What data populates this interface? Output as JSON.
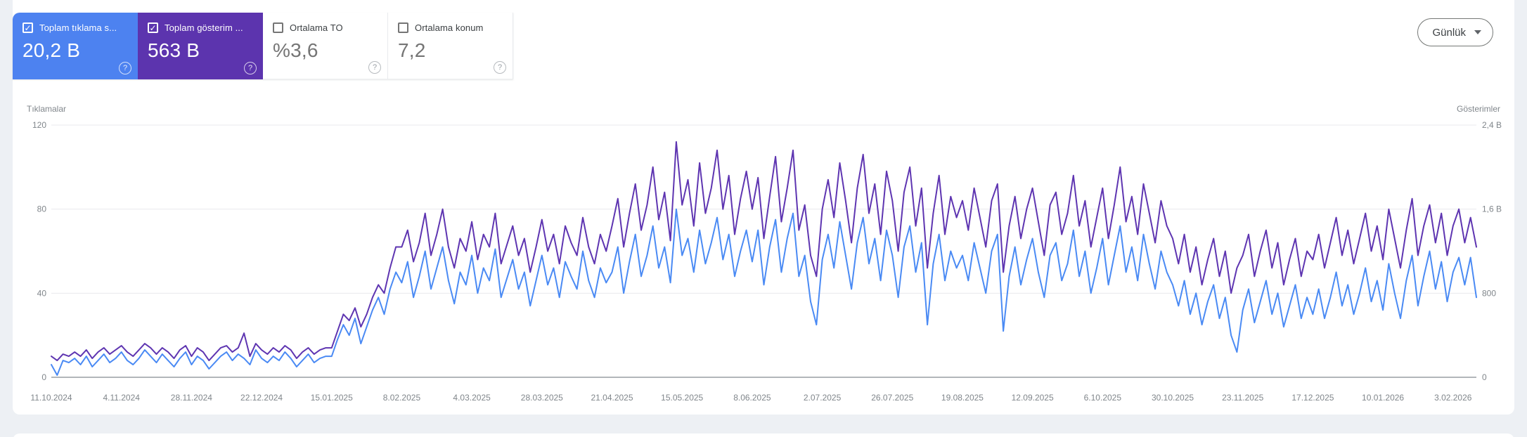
{
  "cards": [
    {
      "label": "Toplam tıklama s...",
      "value": "20,2 B",
      "checked": true,
      "color": "#4d82f0"
    },
    {
      "label": "Toplam gösterim ...",
      "value": "563 B",
      "checked": true,
      "color": "#5c34ae"
    },
    {
      "label": "Ortalama TO",
      "value": "%3,6",
      "checked": false,
      "color": ""
    },
    {
      "label": "Ortalama konum",
      "value": "7,2",
      "checked": false,
      "color": ""
    }
  ],
  "icons": {
    "check": "✓",
    "help": "?"
  },
  "controls": {
    "granularity_label": "Günlük"
  },
  "chart_data": {
    "type": "line",
    "title": "",
    "grid": true,
    "left_axis": {
      "title": "Tıklamalar",
      "max": 120,
      "ticks": [
        "120",
        "80",
        "40",
        "0"
      ]
    },
    "right_axis": {
      "title": "Gösterimler",
      "max": 2400,
      "ticks": [
        "2,4 B",
        "1,6 B",
        "800",
        "0"
      ]
    },
    "x_labels": [
      "11.10.2024",
      "4.11.2024",
      "28.11.2024",
      "22.12.2024",
      "15.01.2025",
      "8.02.2025",
      "4.03.2025",
      "28.03.2025",
      "21.04.2025",
      "15.05.2025",
      "8.06.2025",
      "2.07.2025",
      "26.07.2025",
      "19.08.2025",
      "12.09.2025",
      "6.10.2025",
      "30.10.2025",
      "23.11.2025",
      "17.12.2025",
      "10.01.2026",
      "3.02.2026"
    ],
    "x_label_step_points": 12,
    "series": [
      {
        "name": "Tıklamalar",
        "axis": "left",
        "color": "#4a8af4",
        "values": [
          6,
          1,
          8,
          7,
          9,
          6,
          10,
          5,
          8,
          11,
          7,
          9,
          12,
          8,
          6,
          9,
          13,
          10,
          7,
          11,
          8,
          5,
          9,
          12,
          6,
          10,
          8,
          4,
          7,
          10,
          12,
          8,
          11,
          9,
          6,
          13,
          9,
          7,
          10,
          8,
          12,
          9,
          5,
          8,
          11,
          7,
          9,
          10,
          10,
          18,
          25,
          20,
          28,
          16,
          24,
          32,
          38,
          30,
          42,
          50,
          45,
          55,
          38,
          48,
          60,
          42,
          52,
          62,
          46,
          35,
          50,
          44,
          58,
          40,
          52,
          46,
          61,
          38,
          47,
          56,
          42,
          50,
          34,
          46,
          58,
          44,
          52,
          38,
          55,
          48,
          42,
          60,
          46,
          38,
          52,
          45,
          50,
          62,
          40,
          55,
          68,
          48,
          58,
          72,
          52,
          62,
          45,
          80,
          58,
          66,
          50,
          70,
          54,
          64,
          76,
          56,
          68,
          48,
          60,
          70,
          55,
          70,
          44,
          62,
          75,
          50,
          66,
          78,
          48,
          58,
          36,
          25,
          56,
          68,
          52,
          74,
          58,
          42,
          64,
          76,
          54,
          66,
          46,
          70,
          58,
          38,
          62,
          72,
          50,
          64,
          25,
          54,
          68,
          46,
          60,
          52,
          58,
          46,
          64,
          52,
          40,
          60,
          68,
          22,
          48,
          62,
          44,
          56,
          66,
          50,
          38,
          58,
          64,
          46,
          54,
          70,
          48,
          60,
          40,
          52,
          66,
          44,
          58,
          72,
          50,
          62,
          46,
          68,
          54,
          42,
          60,
          50,
          44,
          34,
          46,
          30,
          40,
          25,
          36,
          44,
          28,
          38,
          20,
          12,
          32,
          42,
          26,
          36,
          46,
          30,
          40,
          24,
          34,
          44,
          28,
          38,
          30,
          42,
          28,
          38,
          50,
          34,
          44,
          30,
          40,
          52,
          36,
          46,
          32,
          54,
          40,
          28,
          46,
          58,
          34,
          48,
          60,
          42,
          55,
          36,
          50,
          57,
          44,
          57,
          38
        ]
      },
      {
        "name": "Gösterimler",
        "axis": "right",
        "color": "#5e35b1",
        "values": [
          200,
          160,
          220,
          200,
          240,
          200,
          260,
          180,
          240,
          280,
          220,
          260,
          300,
          240,
          200,
          260,
          320,
          280,
          220,
          280,
          240,
          180,
          260,
          300,
          200,
          280,
          240,
          160,
          220,
          280,
          300,
          240,
          280,
          420,
          200,
          320,
          260,
          220,
          280,
          240,
          300,
          260,
          180,
          240,
          280,
          220,
          260,
          280,
          280,
          440,
          600,
          540,
          660,
          480,
          600,
          760,
          880,
          800,
          1040,
          1240,
          1240,
          1400,
          1100,
          1280,
          1560,
          1160,
          1360,
          1600,
          1240,
          1040,
          1320,
          1200,
          1480,
          1120,
          1360,
          1240,
          1560,
          1080,
          1260,
          1440,
          1160,
          1320,
          1000,
          1240,
          1500,
          1200,
          1360,
          1080,
          1440,
          1280,
          1160,
          1520,
          1240,
          1080,
          1360,
          1200,
          1440,
          1700,
          1240,
          1560,
          1840,
          1400,
          1640,
          2000,
          1500,
          1760,
          1300,
          2240,
          1640,
          1880,
          1440,
          2040,
          1560,
          1800,
          2160,
          1600,
          1920,
          1360,
          1700,
          1960,
          1600,
          1900,
          1320,
          1720,
          2100,
          1480,
          1800,
          2160,
          1400,
          1640,
          1160,
          960,
          1600,
          1880,
          1520,
          2040,
          1680,
          1280,
          1800,
          2120,
          1560,
          1840,
          1360,
          1960,
          1680,
          1200,
          1760,
          2000,
          1440,
          1800,
          1040,
          1560,
          1920,
          1360,
          1720,
          1520,
          1680,
          1400,
          1800,
          1520,
          1240,
          1680,
          1840,
          1000,
          1440,
          1720,
          1320,
          1600,
          1800,
          1480,
          1160,
          1640,
          1760,
          1360,
          1560,
          1920,
          1440,
          1680,
          1240,
          1520,
          1800,
          1320,
          1640,
          2000,
          1480,
          1720,
          1360,
          1840,
          1560,
          1280,
          1680,
          1440,
          1320,
          1080,
          1360,
          1000,
          1240,
          880,
          1120,
          1320,
          960,
          1200,
          800,
          1040,
          1160,
          1360,
          960,
          1200,
          1400,
          1040,
          1280,
          880,
          1120,
          1320,
          960,
          1200,
          1120,
          1360,
          1040,
          1280,
          1520,
          1160,
          1400,
          1080,
          1320,
          1560,
          1200,
          1440,
          1120,
          1600,
          1320,
          1040,
          1400,
          1700,
          1160,
          1440,
          1640,
          1280,
          1560,
          1160,
          1440,
          1600,
          1280,
          1520,
          1240
        ]
      }
    ]
  }
}
